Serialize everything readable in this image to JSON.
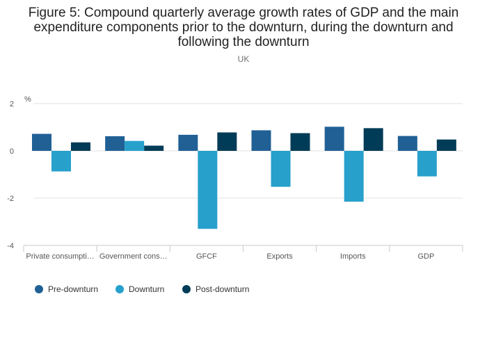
{
  "title": "Figure 5: Compound quarterly average growth rates of GDP and the main expenditure components prior to the downturn, during the downturn and following the downturn",
  "subtitle": "UK",
  "chart_data": {
    "type": "bar",
    "title": "Figure 5: Compound quarterly average growth rates of GDP and the main expenditure components prior to the downturn, during the downturn and following the downturn",
    "subtitle": "UK",
    "ylabel": "%",
    "xlabel": "",
    "ylim": [
      -4,
      2
    ],
    "yticks": [
      2,
      0,
      -2,
      -4
    ],
    "yticks_labels": [
      "2",
      "0",
      "-2",
      "-4"
    ],
    "grid": true,
    "legend_position": "bottom-left",
    "categories": [
      "Private consumpti…",
      "Government cons…",
      "GFCF",
      "Exports",
      "Imports",
      "GDP"
    ],
    "series": [
      {
        "name": "Pre-downturn",
        "color": "#206095",
        "values": [
          0.72,
          0.62,
          0.68,
          0.87,
          1.02,
          0.63
        ]
      },
      {
        "name": "Downturn",
        "color": "#27a0cc",
        "values": [
          -0.87,
          0.42,
          -3.3,
          -1.52,
          -2.15,
          -1.08
        ]
      },
      {
        "name": "Post-downturn",
        "color": "#003c57",
        "values": [
          0.36,
          0.22,
          0.78,
          0.75,
          0.96,
          0.48
        ]
      }
    ]
  }
}
